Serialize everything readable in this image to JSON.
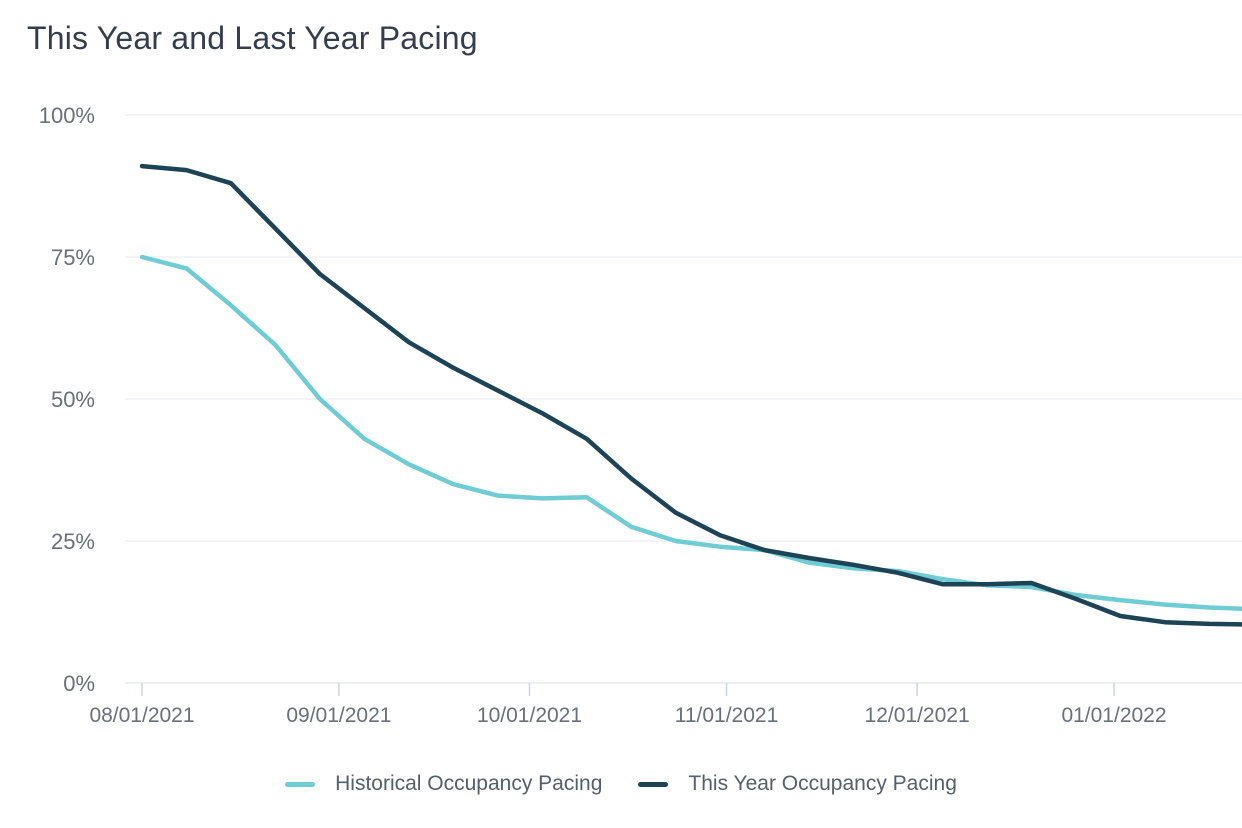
{
  "title": "This Year and Last Year Pacing",
  "colors": {
    "background": "#ffffff",
    "title_text": "#353d4d",
    "axis_label": "#687079",
    "gridline": "#eef0f4",
    "axis_line": "#e7eaef",
    "tick_mark": "#c9d3e3",
    "legend_text": "#555f6a",
    "historical_line": "#6fccd4",
    "this_year_line": "#1d4356"
  },
  "chart_data": {
    "type": "line",
    "title": "This Year and Last Year Pacing",
    "xlabel": "",
    "ylabel": "",
    "ylim": [
      0,
      100
    ],
    "grid": "horizontal",
    "legend_position": "bottom-center",
    "ytick_values": [
      100,
      75,
      50,
      25,
      0
    ],
    "ytick_labels": [
      "100%",
      "75%",
      "50%",
      "25%",
      "0%"
    ],
    "xtick_labels": [
      "08/01/2021",
      "09/01/2021",
      "10/01/2021",
      "11/01/2021",
      "12/01/2021",
      "01/01/2022"
    ],
    "x": [
      "08/01/2021",
      "08/08/2021",
      "08/15/2021",
      "08/22/2021",
      "08/29/2021",
      "09/05/2021",
      "09/12/2021",
      "09/19/2021",
      "09/26/2021",
      "10/03/2021",
      "10/10/2021",
      "10/17/2021",
      "10/24/2021",
      "10/31/2021",
      "11/07/2021",
      "11/14/2021",
      "11/21/2021",
      "11/28/2021",
      "12/05/2021",
      "12/12/2021",
      "12/19/2021",
      "12/26/2021",
      "01/02/2022",
      "01/09/2022",
      "01/16/2022",
      "01/23/2022"
    ],
    "series": [
      {
        "name": "Historical Occupancy Pacing",
        "color": "#6fccd4",
        "values": [
          75,
          73,
          66.5,
          59.5,
          50,
          43,
          38.5,
          35,
          33,
          32.5,
          32.7,
          27.5,
          25,
          24,
          23.4,
          21.2,
          20.2,
          19.7,
          18.3,
          17.2,
          16.9,
          15.5,
          14.6,
          13.8,
          13.3,
          13
        ]
      },
      {
        "name": "This Year Occupancy Pacing",
        "color": "#1d4356",
        "values": [
          91,
          90.3,
          88,
          80,
          72,
          66,
          60,
          55.5,
          51.5,
          47.5,
          43,
          36,
          30,
          26,
          23.4,
          22,
          20.8,
          19.4,
          17.4,
          17.4,
          17.6,
          14.8,
          11.8,
          10.7,
          10.4,
          10.3
        ]
      }
    ]
  }
}
